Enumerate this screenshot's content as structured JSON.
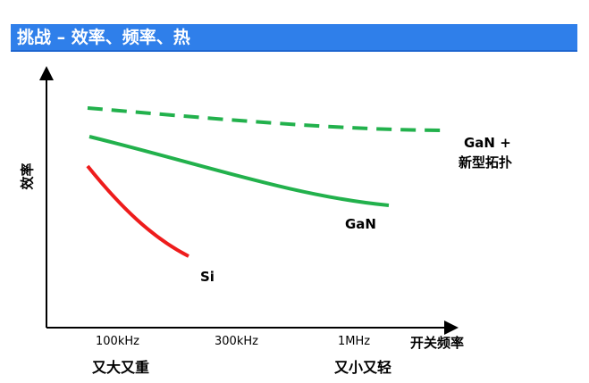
{
  "header": {
    "title": "挑战 – 效率、频率、热",
    "bar_color": "#2f7fea"
  },
  "chart_data": {
    "type": "line",
    "ylabel": "效率",
    "xlabel": "开关频率",
    "ticks": [
      "100kHz",
      "300kHz",
      "1MHz"
    ],
    "series": [
      {
        "name": "GaN +\n新型拓扑",
        "name_lines": [
          "GaN +",
          "新型拓扑"
        ],
        "color": "#22b14c",
        "dash": true
      },
      {
        "name": "GaN",
        "color": "#22b14c",
        "dash": false
      },
      {
        "name": "Si",
        "color": "#ee1c1c",
        "dash": false
      }
    ],
    "annotations": {
      "left": "又大又重",
      "right": "又小又轻"
    }
  }
}
